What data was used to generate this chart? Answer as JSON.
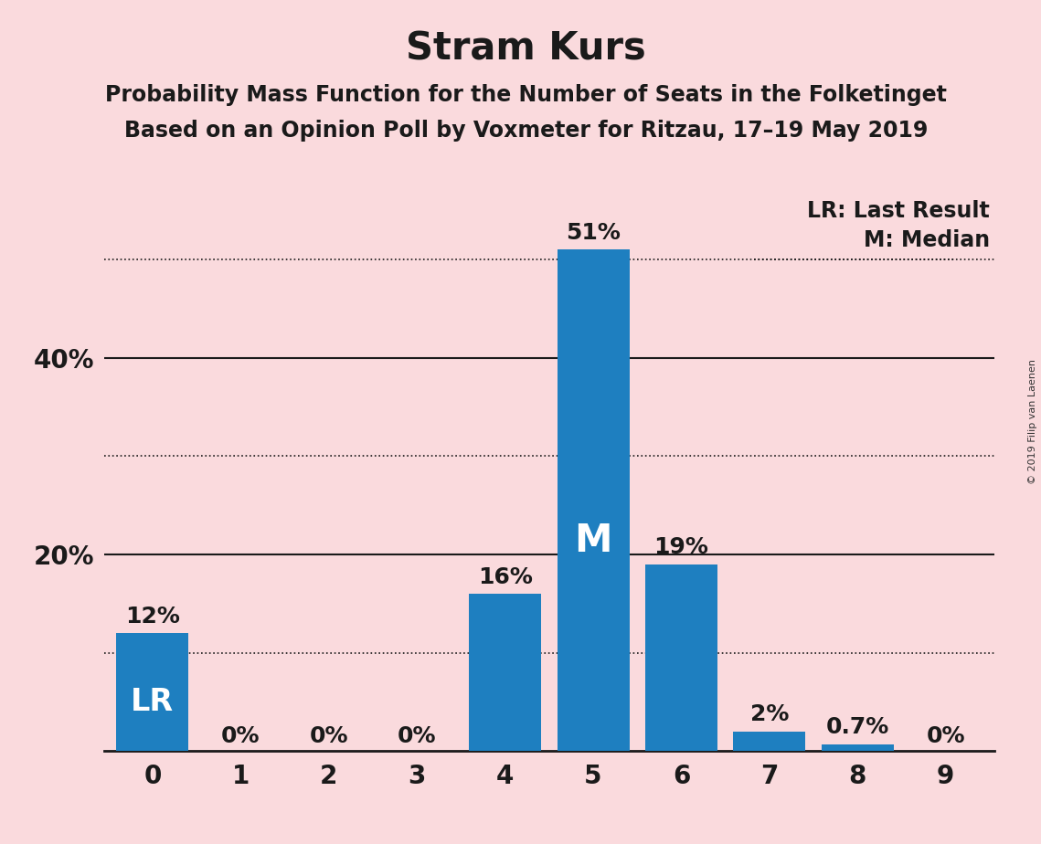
{
  "title": "Stram Kurs",
  "subtitle1": "Probability Mass Function for the Number of Seats in the Folketinget",
  "subtitle2": "Based on an Opinion Poll by Voxmeter for Ritzau, 17–19 May 2019",
  "copyright": "© 2019 Filip van Laenen",
  "categories": [
    0,
    1,
    2,
    3,
    4,
    5,
    6,
    7,
    8,
    9
  ],
  "values": [
    0.12,
    0.0,
    0.0,
    0.0,
    0.16,
    0.51,
    0.19,
    0.02,
    0.007,
    0.0
  ],
  "labels": [
    "12%",
    "0%",
    "0%",
    "0%",
    "16%",
    "51%",
    "19%",
    "2%",
    "0.7%",
    "0%"
  ],
  "bar_color": "#1e7fc0",
  "background_color": "#fadadd",
  "lr_bar": 0,
  "median_bar": 5,
  "lr_label": "LR",
  "median_label": "M",
  "legend_lr": "LR: Last Result",
  "legend_m": "M: Median",
  "ylim": [
    0,
    0.575
  ],
  "solid_yticks": [
    0.2,
    0.4
  ],
  "dotted_yticks": [
    0.1,
    0.3,
    0.5
  ],
  "title_fontsize": 30,
  "subtitle_fontsize": 17,
  "label_fontsize": 18,
  "tick_fontsize": 20,
  "legend_fontsize": 17,
  "inner_label_fontsize": 24,
  "median_inner_fontsize": 30,
  "ytick_fontsize": 20
}
